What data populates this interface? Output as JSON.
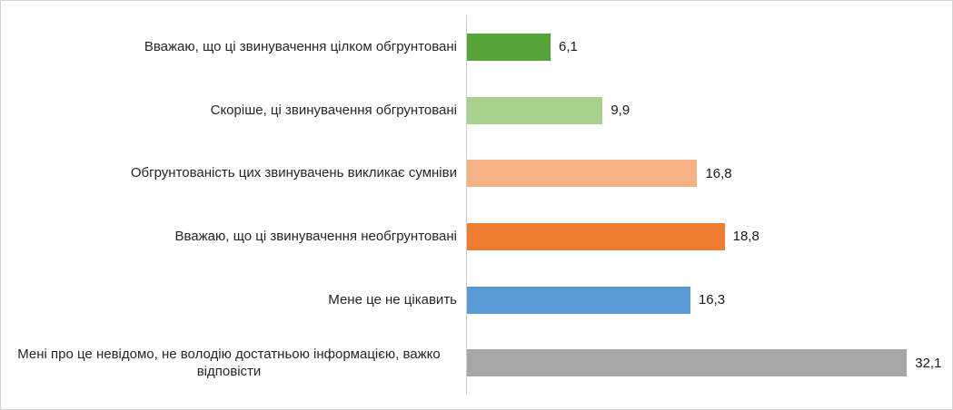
{
  "chart_data": {
    "type": "bar",
    "orientation": "horizontal",
    "title": "",
    "xlabel": "",
    "ylabel": "",
    "xlim": [
      0,
      35
    ],
    "grid": false,
    "legend": false,
    "categories": [
      "Вважаю, що ці звинувачення цілком обгрунтовані",
      "Скоріше, ці звинувачення обгрунтовані",
      "Обгрунтованість цих звинувачень викликає сумніви",
      "Вважаю, що ці звинувачення необгрунтовані",
      "Мене це не цікавить",
      "Мені про це невідомо, не володію достатньою інформацією, важко відповісти"
    ],
    "values": [
      6.1,
      9.9,
      16.8,
      18.8,
      16.3,
      32.1
    ],
    "value_labels": [
      "6,1",
      "9,9",
      "16,8",
      "18,8",
      "16,3",
      "32,1"
    ],
    "bar_colors": [
      "#56a337",
      "#a9d18e",
      "#f4b183",
      "#ed7d31",
      "#5b9bd5",
      "#a6a6a6"
    ],
    "axis_line_color": "#d0d0d0",
    "text_color": "#262626",
    "background_color": "#ffffff"
  }
}
